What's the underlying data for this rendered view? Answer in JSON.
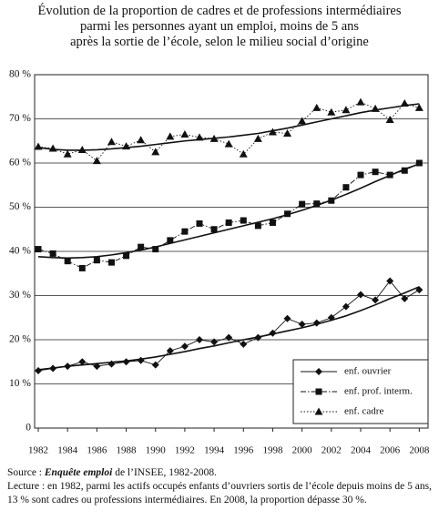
{
  "chart_data": {
    "type": "line",
    "title": [
      "Évolution de la proportion de cadres et de professions intermédiaires",
      "parmi les personnes ayant un emploi, moins de 5 ans",
      "après la sortie de l’école, selon le milieu social d’origine"
    ],
    "x": [
      1982,
      1983,
      1984,
      1985,
      1986,
      1987,
      1988,
      1989,
      1990,
      1991,
      1992,
      1993,
      1994,
      1995,
      1996,
      1997,
      1998,
      1999,
      2000,
      2001,
      2002,
      2003,
      2004,
      2005,
      2006,
      2007,
      2008
    ],
    "xlim": [
      1981.75,
      2008.6
    ],
    "xticks": [
      1982,
      1984,
      1986,
      1988,
      1990,
      1992,
      1994,
      1996,
      1998,
      2000,
      2002,
      2004,
      2006,
      2008
    ],
    "ylim": [
      0,
      80
    ],
    "yticks": [
      0,
      {
        "value": 10,
        "label": "10 %"
      },
      {
        "value": 20,
        "label": "20 %"
      },
      {
        "value": 30,
        "label": "30 %"
      },
      {
        "value": 40,
        "label": "40 %"
      },
      {
        "value": 50,
        "label": "50 %"
      },
      {
        "value": 60,
        "label": "60 %"
      },
      {
        "value": 70,
        "label": "70 %"
      },
      {
        "value": 80,
        "label": "80 %"
      }
    ],
    "grid": true,
    "legend": "bottom-right",
    "series": [
      {
        "name": "enf. ouvrier",
        "color": "#111111",
        "marker": "diamond",
        "line_style": "solid",
        "values": [
          13,
          13.5,
          14,
          15,
          14,
          14.5,
          15,
          15.3,
          14.3,
          17.5,
          18.5,
          20,
          19.5,
          20.5,
          19,
          20.5,
          21.5,
          24.8,
          23.5,
          23.8,
          25,
          27.5,
          30.2,
          29,
          33.3,
          29.3,
          31.3
        ],
        "trend": [
          13.2,
          13.6,
          14,
          14.3,
          14.6,
          14.9,
          15.2,
          15.6,
          16.1,
          16.7,
          17.3,
          18,
          18.6,
          19.3,
          20,
          20.6,
          21.3,
          22,
          22.7,
          23.5,
          24.4,
          25.4,
          26.6,
          27.9,
          29.3,
          30.6,
          32
        ]
      },
      {
        "name": "enf. prof. interm.",
        "color": "#111111",
        "marker": "square",
        "line_style": "dashdot",
        "values": [
          40.5,
          39.5,
          37.8,
          36.2,
          38,
          37.5,
          39,
          41,
          40.5,
          42.5,
          44.5,
          46.3,
          45,
          46.5,
          47,
          45.8,
          46.5,
          48.5,
          50.7,
          50.8,
          51.5,
          54.5,
          57.3,
          58,
          57.3,
          58.3,
          60
        ],
        "trend": [
          38.8,
          38.6,
          38.5,
          38.6,
          38.8,
          39.2,
          39.7,
          40.3,
          41,
          41.8,
          42.6,
          43.4,
          44.2,
          45,
          45.8,
          46.6,
          47.4,
          48.3,
          49.3,
          50.4,
          51.6,
          52.9,
          54.3,
          55.8,
          57.2,
          58.6,
          59.8
        ]
      },
      {
        "name": "enf. cadre",
        "color": "#111111",
        "marker": "triangle",
        "line_style": "dotted",
        "values": [
          63.7,
          63.3,
          62,
          63,
          60.5,
          64.8,
          63.8,
          65.2,
          62.5,
          66,
          66.5,
          65.8,
          65.5,
          64.3,
          62,
          65.5,
          67,
          66.7,
          69.5,
          72.5,
          71.5,
          72,
          73.8,
          72.3,
          69.8,
          73.5,
          72.5
        ],
        "trend": [
          63.5,
          63.1,
          62.9,
          62.9,
          63,
          63.2,
          63.5,
          63.8,
          64.2,
          64.6,
          65,
          65.3,
          65.6,
          65.9,
          66.3,
          66.7,
          67.3,
          67.9,
          68.6,
          69.3,
          70,
          70.7,
          71.4,
          72,
          72.5,
          73,
          73.4
        ]
      }
    ]
  },
  "notes": {
    "source_label": "Source :",
    "source_title": "Enquête emploi",
    "source_rest": "de l’INSEE, 1982-2008.",
    "reading": "Lecture : en 1982, parmi les actifs occupés enfants d’ouvriers sortis de l’école depuis moins de 5 ans, 13 % sont cadres ou professions intermédiaires. En 2008, la proportion dépasse 30 %."
  }
}
